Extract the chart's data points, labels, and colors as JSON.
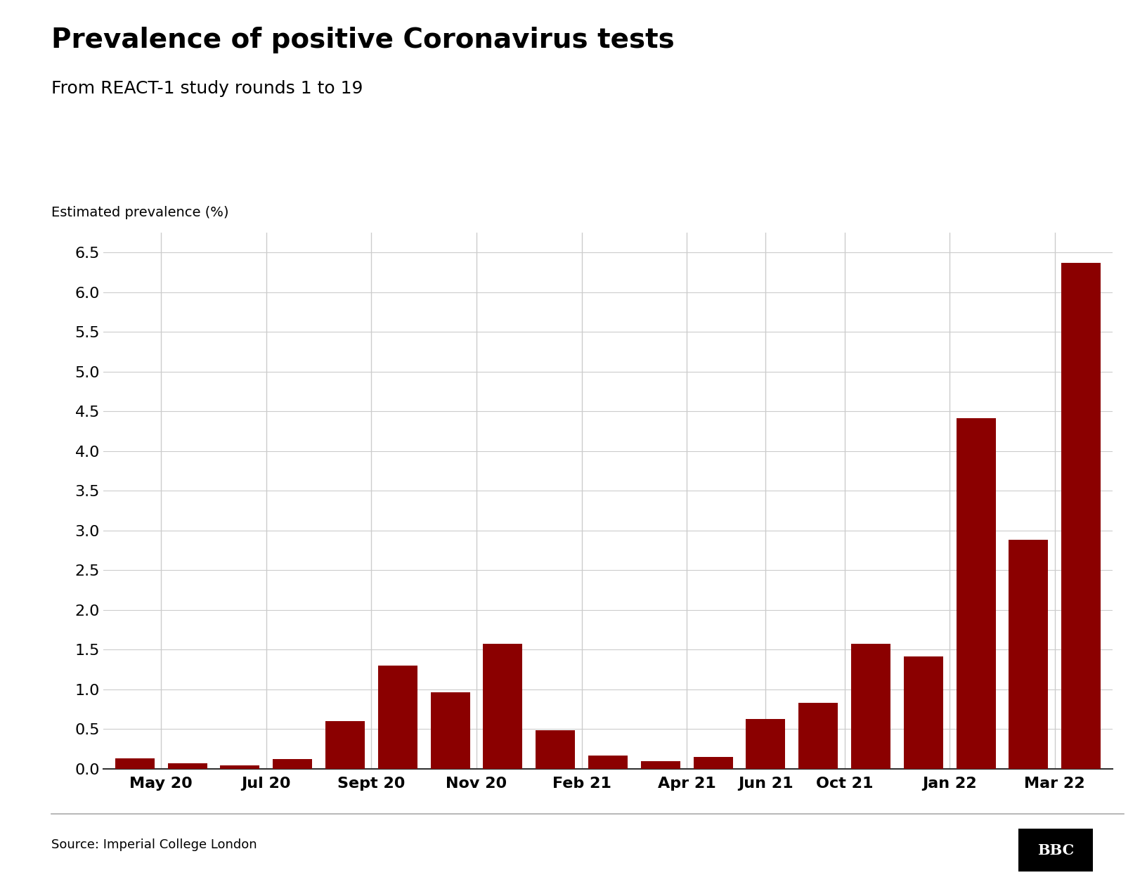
{
  "title": "Prevalence of positive Coronavirus tests",
  "subtitle": "From REACT-1 study rounds 1 to 19",
  "ylabel": "Estimated prevalence (%)",
  "source": "Source: Imperial College London",
  "bar_color": "#8B0000",
  "background_color": "#ffffff",
  "ylim": [
    0,
    6.75
  ],
  "yticks": [
    0.0,
    0.5,
    1.0,
    1.5,
    2.0,
    2.5,
    3.0,
    3.5,
    4.0,
    4.5,
    5.0,
    5.5,
    6.0,
    6.5
  ],
  "values": [
    0.13,
    0.07,
    0.04,
    0.12,
    0.6,
    1.3,
    0.96,
    1.57,
    0.49,
    0.17,
    0.1,
    0.15,
    0.63,
    0.83,
    1.57,
    1.41,
    4.41,
    2.88,
    6.37
  ],
  "xtick_labels": [
    "May 20",
    "Jul 20",
    "Sept 20",
    "Nov 20",
    "Feb 21",
    "Apr 21",
    "Jun 21",
    "Oct 21",
    "Jan 22",
    "Mar 22"
  ],
  "title_fontsize": 28,
  "subtitle_fontsize": 18,
  "ylabel_fontsize": 14,
  "tick_fontsize": 16,
  "source_fontsize": 13,
  "grid_color": "#cccccc",
  "spine_color": "#000000",
  "bottom_line_color": "#333333"
}
